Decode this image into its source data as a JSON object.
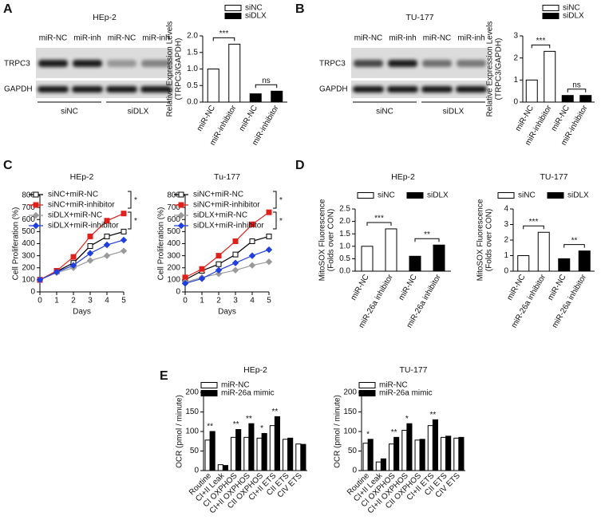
{
  "panel_letters": [
    "A",
    "B",
    "C",
    "D",
    "E"
  ],
  "blots": [
    {
      "title": "HEp-2",
      "lanes": [
        "miR-NC",
        "miR-inh",
        "miR-NC",
        "miR-inh"
      ],
      "rows": [
        "TRPC3",
        "GAPDH"
      ],
      "groups": [
        "siNC",
        "siDLX"
      ]
    },
    {
      "title": "TU-177",
      "lanes": [
        "miR-NC",
        "miR-inh",
        "miR-NC",
        "miR-inh"
      ],
      "rows": [
        "TRPC3",
        "GAPDH"
      ],
      "groups": [
        "siNC",
        "siDLX"
      ]
    }
  ],
  "chart_data": [
    {
      "type": "bar",
      "ylabel": [
        "Relative Expression Levels",
        "(TRPC3/GAPDH)"
      ],
      "categories": [
        "miR-NC",
        "miR-inhibitor",
        "miR-NC",
        "miR-inhibitor"
      ],
      "series": [
        {
          "name": "siNC",
          "color": "#ffffff",
          "values": [
            1.0,
            1.75,
            null,
            null
          ]
        },
        {
          "name": "siDLX",
          "color": "#000000",
          "values": [
            null,
            null,
            0.25,
            0.33
          ]
        }
      ],
      "ylim": [
        0,
        2.0
      ],
      "yticks": [
        {
          "value": 0,
          "label": "0.0"
        },
        {
          "value": 0.5,
          "label": "0.5"
        },
        {
          "value": 1.0,
          "label": "1.0"
        },
        {
          "value": 1.5,
          "label": "1.5"
        },
        {
          "value": 2.0,
          "label": "2.0"
        }
      ],
      "brackets": [
        "***",
        "ns"
      ],
      "legend": "top"
    },
    {
      "type": "bar",
      "ylabel": [
        "Relative Expression Levels",
        "(TRPC3/GAPDH)"
      ],
      "categories": [
        "miR-NC",
        "miR-inhibitor",
        "miR-NC",
        "miR-inhibitor"
      ],
      "series": [
        {
          "name": "siNC",
          "color": "#ffffff",
          "values": [
            1.0,
            2.3,
            null,
            null
          ]
        },
        {
          "name": "siDLX",
          "color": "#000000",
          "values": [
            null,
            null,
            0.3,
            0.3
          ]
        }
      ],
      "ylim": [
        0,
        3
      ],
      "yticks": [
        0,
        1,
        2,
        3
      ],
      "brackets": [
        "***",
        "ns"
      ],
      "legend": "top"
    },
    {
      "type": "line",
      "title": "HEp-2",
      "xlabel": "Days",
      "ylabel": "Cell Proliferation (%)",
      "x": [
        0,
        1,
        2,
        3,
        4,
        5
      ],
      "xlim": [
        0,
        5
      ],
      "xticks": [
        0,
        1,
        2,
        3,
        4,
        5
      ],
      "ylim": [
        0,
        800
      ],
      "yticks": [
        0,
        100,
        200,
        300,
        400,
        500,
        600,
        700,
        800
      ],
      "series": [
        {
          "name": "siNC+miR-NC",
          "color": "#000000",
          "marker": "open-square",
          "values": [
            100,
            170,
            240,
            380,
            460,
            500
          ]
        },
        {
          "name": "siNC+miR-inhibitor",
          "color": "#e0201b",
          "marker": "square",
          "values": [
            100,
            175,
            290,
            460,
            590,
            650
          ]
        },
        {
          "name": "siDLX+miR-NC",
          "color": "#9a9a9a",
          "marker": "diamond",
          "values": [
            100,
            160,
            200,
            260,
            300,
            340
          ]
        },
        {
          "name": "siDLX+miR-inhibitor",
          "color": "#1f3fe0",
          "marker": "diamond",
          "values": [
            100,
            165,
            220,
            320,
            390,
            430
          ]
        }
      ],
      "legend_brackets": [
        "*",
        "*"
      ],
      "legend": "top-left"
    },
    {
      "type": "line",
      "title": "Tu-177",
      "xlabel": "Days",
      "ylabel": "Cell Proliferation (%)",
      "x": [
        0,
        1,
        2,
        3,
        4,
        5
      ],
      "xlim": [
        0,
        5
      ],
      "xticks": [
        0,
        1,
        2,
        3,
        4,
        5
      ],
      "ylim": [
        0,
        800
      ],
      "yticks": [
        0,
        100,
        200,
        300,
        400,
        500,
        600,
        700,
        800
      ],
      "series": [
        {
          "name": "siNC+miR-NC",
          "color": "#000000",
          "marker": "open-square",
          "values": [
            100,
            175,
            230,
            310,
            420,
            460
          ]
        },
        {
          "name": "siNC+miR-inhibitor",
          "color": "#e0201b",
          "marker": "square",
          "values": [
            120,
            190,
            300,
            420,
            560,
            660
          ]
        },
        {
          "name": "siDLX+miR-NC",
          "color": "#9a9a9a",
          "marker": "diamond",
          "values": [
            80,
            120,
            150,
            180,
            220,
            250
          ]
        },
        {
          "name": "siDLX+miR-inhibitor",
          "color": "#1f3fe0",
          "marker": "diamond",
          "values": [
            70,
            110,
            180,
            240,
            300,
            350
          ]
        }
      ],
      "legend_brackets": [
        "*",
        "*"
      ],
      "legend": "top-left"
    },
    {
      "type": "bar",
      "title": "HEp-2",
      "ylabel": [
        "MitoSOX Fluorescence",
        "(Folds over CON)"
      ],
      "categories": [
        "miR-NC",
        "miR-26a inhibitor",
        "miR-NC",
        "miR-26a inhibitor"
      ],
      "series": [
        {
          "name": "siNC",
          "color": "#ffffff",
          "values": [
            1.0,
            1.7,
            null,
            null
          ]
        },
        {
          "name": "siDLX",
          "color": "#000000",
          "values": [
            null,
            null,
            0.6,
            1.05
          ]
        }
      ],
      "ylim": [
        0,
        2.5
      ],
      "yticks": [
        {
          "value": 0,
          "label": "0.0"
        },
        {
          "value": 0.5,
          "label": "0.5"
        },
        {
          "value": 1.0,
          "label": "1.0"
        },
        {
          "value": 1.5,
          "label": "1.5"
        },
        {
          "value": 2.0,
          "label": "2.0"
        },
        {
          "value": 2.5,
          "label": "2.5"
        }
      ],
      "brackets": [
        "***",
        "**"
      ],
      "legend": "top-horizontal"
    },
    {
      "type": "bar",
      "title": "TU-177",
      "ylabel": [
        "MitoSOX Fluorescence",
        "(Folds over CON)"
      ],
      "categories": [
        "miR-NC",
        "miR-26a inhibitor",
        "miR-NC",
        "miR-26a inhibitor"
      ],
      "series": [
        {
          "name": "siNC",
          "color": "#ffffff",
          "values": [
            1.0,
            2.5,
            null,
            null
          ]
        },
        {
          "name": "siDLX",
          "color": "#000000",
          "values": [
            null,
            null,
            0.8,
            1.3
          ]
        }
      ],
      "ylim": [
        0,
        4
      ],
      "yticks": [
        0,
        1,
        2,
        3,
        4
      ],
      "brackets": [
        "***",
        "**"
      ],
      "legend": "top-horizontal"
    },
    {
      "type": "bar",
      "title": "HEp-2",
      "ylabel": [
        "OCR (pmol / minute)"
      ],
      "categories": [
        "Routine",
        "CI+II Leak",
        "CI OXPHOS",
        "CI+II OXPHOS",
        "CII OXPHOS",
        "CI+II ETS",
        "CII ETS",
        "CIV ETS"
      ],
      "series": [
        {
          "name": "miR-NC",
          "color": "#ffffff",
          "values": [
            78,
            15,
            85,
            85,
            83,
            115,
            80,
            68
          ]
        },
        {
          "name": "miR-26a mimic",
          "color": "#000000",
          "values": [
            100,
            13,
            105,
            120,
            95,
            138,
            83,
            67
          ]
        }
      ],
      "ylim": [
        0,
        200
      ],
      "yticks": [
        0,
        50,
        100,
        150,
        200
      ],
      "annotations": [
        "**",
        null,
        "**",
        "**",
        "*",
        "**",
        null,
        null
      ],
      "legend": "top"
    },
    {
      "type": "bar",
      "title": "TU-177",
      "ylabel": [
        "OCR (pmol / minute)"
      ],
      "categories": [
        "Routine",
        "CI+II Leak",
        "CI OXPHOS",
        "CI+II OXPHOS",
        "CII OXPHOS",
        "CI+II ETS",
        "CII ETS",
        "CIV ETS"
      ],
      "series": [
        {
          "name": "miR-NC",
          "color": "#ffffff",
          "values": [
            70,
            22,
            68,
            103,
            78,
            115,
            85,
            83
          ]
        },
        {
          "name": "miR-26a mimic",
          "color": "#000000",
          "values": [
            80,
            30,
            85,
            120,
            80,
            130,
            88,
            85
          ]
        }
      ],
      "ylim": [
        0,
        200
      ],
      "yticks": [
        0,
        50,
        100,
        150,
        200
      ],
      "annotations": [
        "*",
        null,
        "**",
        "*",
        null,
        "**",
        null,
        null
      ],
      "legend": "top"
    }
  ]
}
